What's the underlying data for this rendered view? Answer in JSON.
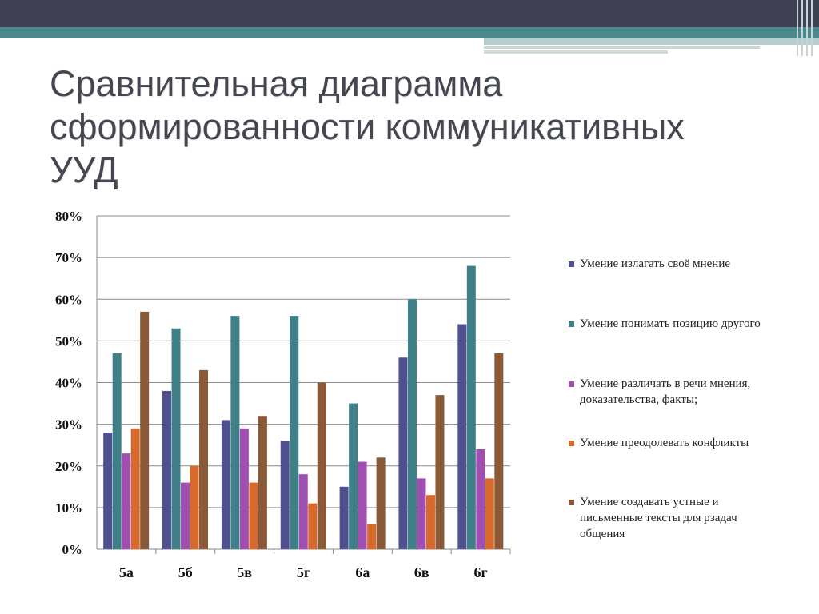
{
  "header": {
    "title": "Сравнительная диаграмма\nсформированности коммуникативных\nУУД"
  },
  "theme": {
    "top_band": "#3f4152",
    "accent_band": "#4a8a8c"
  },
  "chart_data": {
    "type": "bar",
    "title": "",
    "xlabel": "",
    "ylabel": "",
    "ylim": [
      0,
      80
    ],
    "yticks": [
      "0%",
      "10%",
      "20%",
      "30%",
      "40%",
      "50%",
      "60%",
      "70%",
      "80%"
    ],
    "grid": true,
    "legend_position": "right",
    "categories": [
      "5а",
      "5б",
      "5в",
      "5г",
      "6а",
      "6в",
      "6г"
    ],
    "series": [
      {
        "name": "Умение излагать своё мнение",
        "color": "#4e5090",
        "values": [
          28,
          38,
          31,
          26,
          15,
          46,
          54
        ]
      },
      {
        "name": "Умение понимать позицию другого",
        "color": "#3f8088",
        "values": [
          47,
          53,
          56,
          56,
          35,
          60,
          68
        ]
      },
      {
        "name": "Умение различать в речи мнения, доказательства, факты;",
        "color": "#a04fb0",
        "values": [
          23,
          16,
          29,
          18,
          21,
          17,
          24
        ]
      },
      {
        "name": "Умение преодолевать конфликты",
        "color": "#d66a2c",
        "values": [
          29,
          20,
          16,
          11,
          6,
          13,
          17
        ]
      },
      {
        "name": "Умение создавать устные и письменные тексты для рзадач общения",
        "color": "#8a5a38",
        "values": [
          57,
          43,
          32,
          40,
          22,
          37,
          47
        ]
      }
    ]
  }
}
